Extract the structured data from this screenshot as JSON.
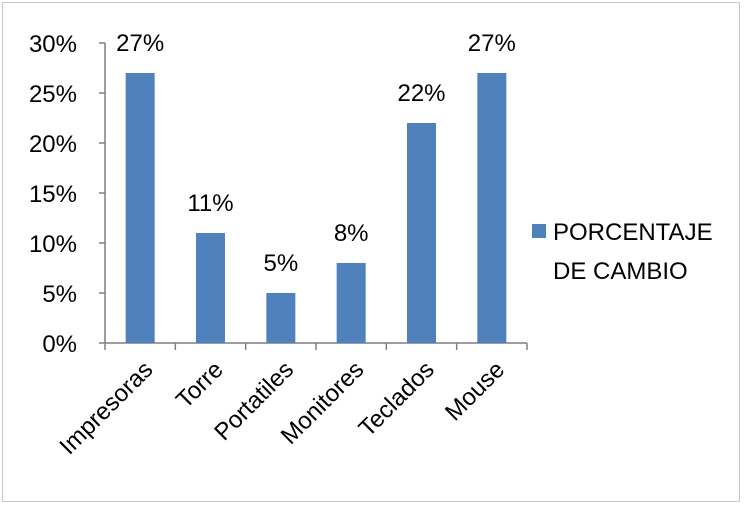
{
  "chart_data": {
    "type": "bar",
    "categories": [
      "Impresoras",
      "Torre",
      "Portatiles",
      "Monitores",
      "Teclados",
      "Mouse"
    ],
    "series": [
      {
        "name": "PORCENTAJE DE CAMBIO",
        "values": [
          27,
          11,
          5,
          8,
          22,
          27
        ],
        "color": "#4f81bd"
      }
    ],
    "data_labels": [
      "27%",
      "11%",
      "5%",
      "8%",
      "22%",
      "27%"
    ],
    "y_ticks": [
      "0%",
      "5%",
      "10%",
      "15%",
      "20%",
      "25%",
      "30%"
    ],
    "ylim": [
      0,
      30
    ],
    "y_unit": "%",
    "legend": {
      "position": "right",
      "lines": [
        "PORCENTAJE",
        "DE CAMBIO"
      ]
    },
    "grid": false
  }
}
